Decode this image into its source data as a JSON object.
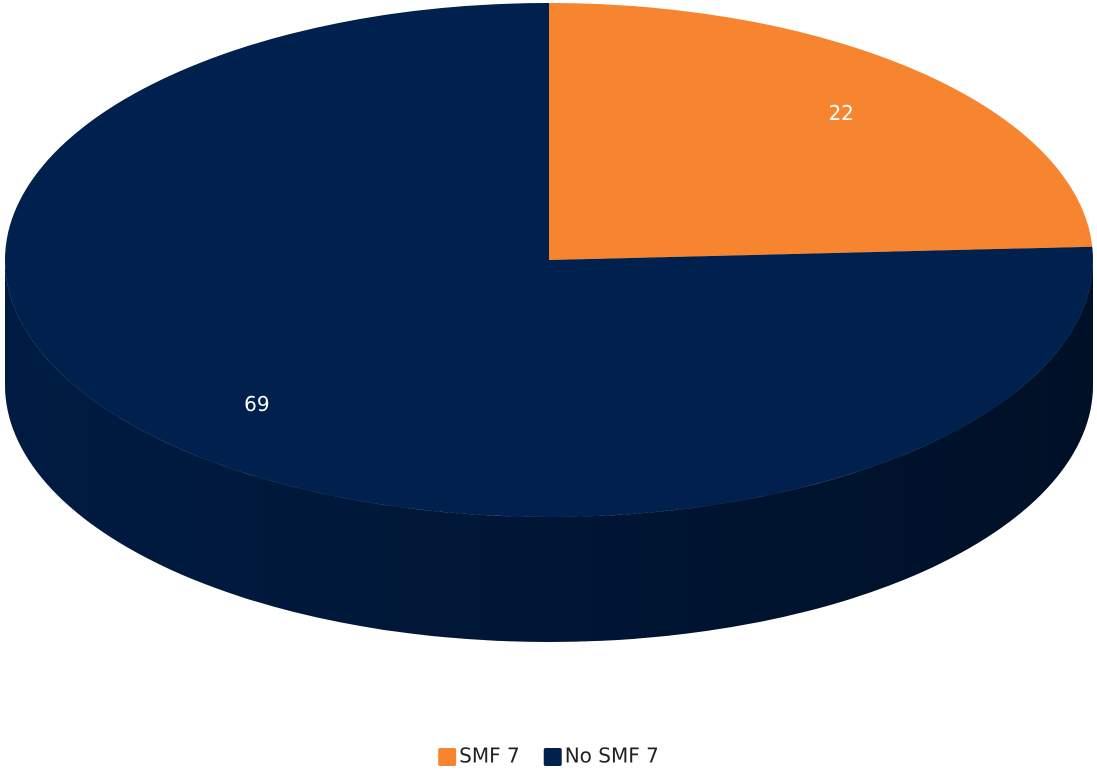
{
  "chart_data": {
    "type": "pie",
    "categories": [
      "SMF 7",
      "No SMF 7"
    ],
    "values": [
      22,
      69
    ],
    "colors": [
      "#F7852F",
      "#00204D"
    ]
  }
}
